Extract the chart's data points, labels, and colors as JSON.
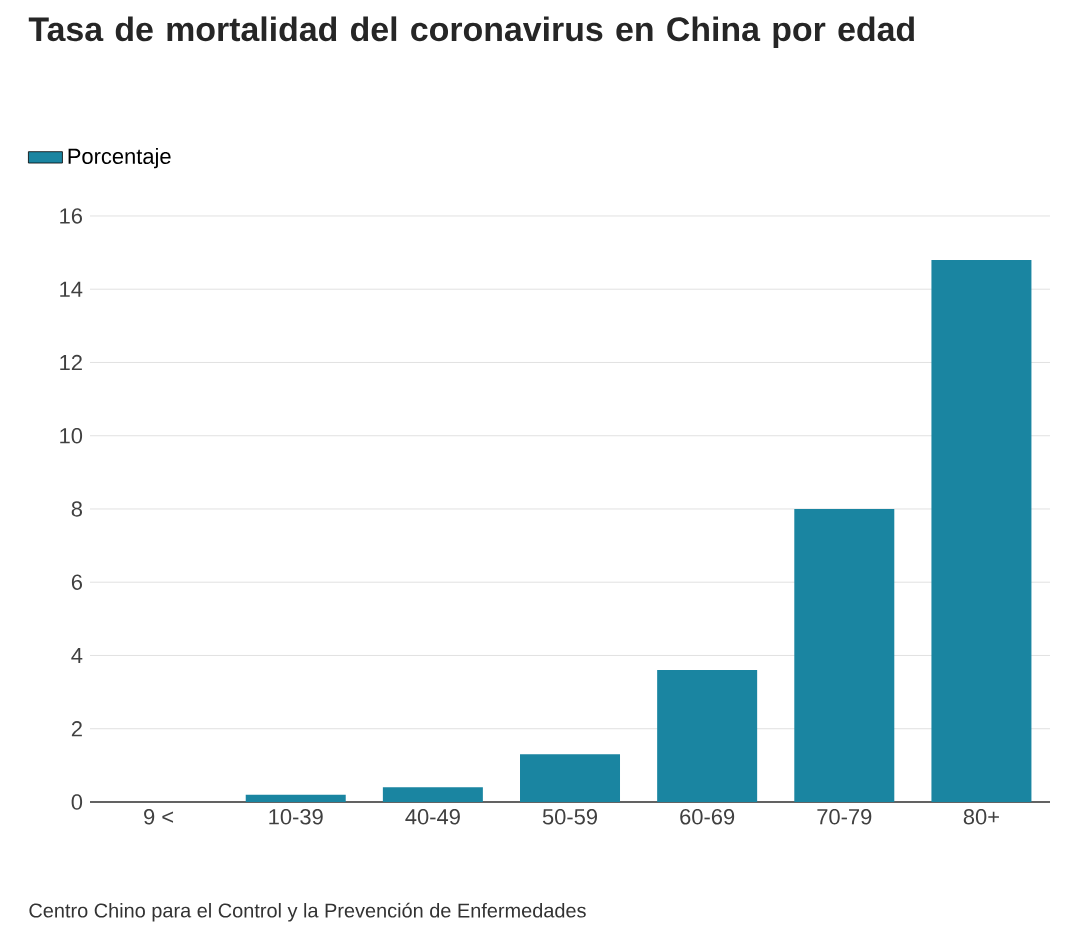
{
  "chart_data": {
    "type": "bar",
    "title": "Tasa de mortalidad del coronavirus en China por edad",
    "categories": [
      "9 <",
      "10-39",
      "40-49",
      "50-59",
      "60-69",
      "70-79",
      "80+"
    ],
    "series": [
      {
        "name": "Porcentaje",
        "color": "#1a85a1",
        "values": [
          0,
          0.2,
          0.4,
          1.3,
          3.6,
          8.0,
          14.8
        ]
      }
    ],
    "ylim": [
      0,
      16
    ],
    "yticks": [
      0,
      2,
      4,
      6,
      8,
      10,
      12,
      14,
      16
    ],
    "grid": "y",
    "legend": "top left",
    "annotations": [
      "Centro Chino para el Control y la Prevención de Enfermedades"
    ]
  }
}
